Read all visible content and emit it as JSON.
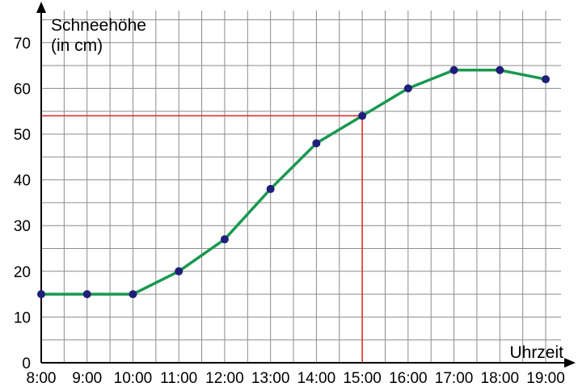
{
  "chart_data": {
    "type": "line",
    "title": "",
    "ylabel_line1": "Schneehöhe",
    "ylabel_line2": "(in cm)",
    "xlabel": "Uhrzeit",
    "x_ticks": [
      "8:00",
      "9:00",
      "10:00",
      "11:00",
      "12:00",
      "13:00",
      "14:00",
      "15:00",
      "16:00",
      "17:00",
      "18:00",
      "19:00"
    ],
    "y_ticks": [
      "0",
      "10",
      "20",
      "30",
      "40",
      "50",
      "60",
      "70"
    ],
    "xlim": [
      8,
      19
    ],
    "ylim": [
      0,
      77
    ],
    "grid": true,
    "points": [
      {
        "x": 8,
        "y": 15
      },
      {
        "x": 9,
        "y": 15
      },
      {
        "x": 10,
        "y": 15
      },
      {
        "x": 11,
        "y": 20
      },
      {
        "x": 12,
        "y": 27
      },
      {
        "x": 13,
        "y": 38
      },
      {
        "x": 14,
        "y": 48
      },
      {
        "x": 15,
        "y": 54
      },
      {
        "x": 16,
        "y": 60
      },
      {
        "x": 17,
        "y": 64
      },
      {
        "x": 18,
        "y": 64
      },
      {
        "x": 19,
        "y": 62
      }
    ],
    "reference_lines": {
      "x": 15,
      "y": 54
    },
    "colors": {
      "line": "#1a9850",
      "marker": "#1f1f7a",
      "reference": "#e03030",
      "grid": "#8c8c8c",
      "axis": "#000000"
    }
  }
}
